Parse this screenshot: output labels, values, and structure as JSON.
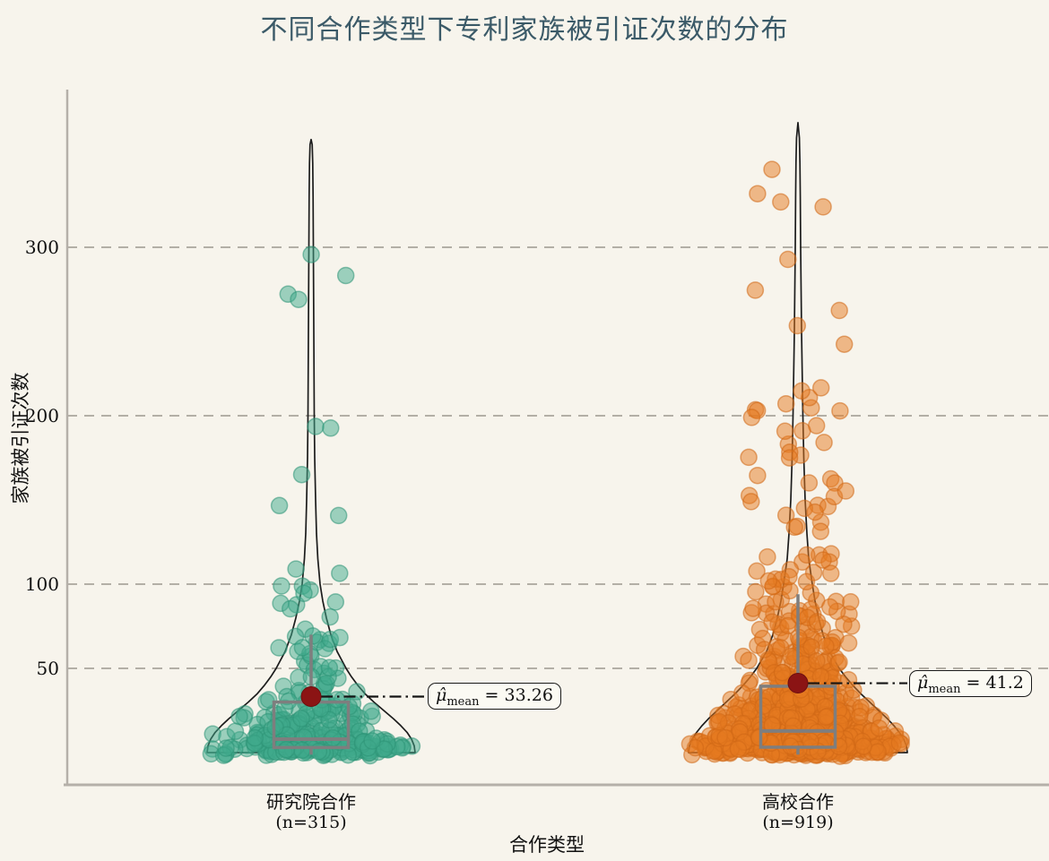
{
  "title": "不同合作类型下专利家族被引证次数的分布",
  "colors": {
    "background": "#f7f4ec",
    "title": "#3b5a68",
    "grid": "#b3afa6",
    "spine": "#b5b0a9",
    "violin_outline": "#1c1c1c",
    "box": "#7e7e7e",
    "mean_dot": "#8b1414",
    "connector": "#141414"
  },
  "chart_data": {
    "type": "violin-box-scatter",
    "title": "不同合作类型下专利家族被引证次数的分布",
    "xlabel": "合作类型",
    "ylabel": "家族被引证次数",
    "yticks": [
      50,
      100,
      200,
      300
    ],
    "ylim": [
      0,
      394
    ],
    "grid": "horizontal-dashed",
    "legend": "none",
    "series": [
      {
        "label": "研究院合作",
        "n": 315,
        "n_label": "(n=315)",
        "point_color": "#3fa98c",
        "point_stroke": "#2e9377",
        "mean": 33.26,
        "box": {
          "q1": 3,
          "median": 8,
          "q3": 30,
          "whisker_low": -1.2,
          "whisker_high": 70
        },
        "max": 364,
        "distribution": {
          "type": "lognormal",
          "mu": 2.197,
          "sigma": 1.617,
          "seed": 7
        },
        "jitter_min_amp": 45,
        "annotation": {
          "mu": "μ̂",
          "sub": "mean",
          "rest": " = 33.26"
        },
        "violin_profile": [
          [
            0,
            116
          ],
          [
            4,
            115
          ],
          [
            8,
            112
          ],
          [
            12,
            107
          ],
          [
            16,
            100
          ],
          [
            20,
            92
          ],
          [
            25,
            81
          ],
          [
            30,
            70
          ],
          [
            35,
            60
          ],
          [
            40,
            52
          ],
          [
            45,
            45
          ],
          [
            50,
            39
          ],
          [
            60,
            29
          ],
          [
            70,
            22
          ],
          [
            80,
            17
          ],
          [
            90,
            13
          ],
          [
            100,
            10
          ],
          [
            115,
            7.5
          ],
          [
            130,
            6
          ],
          [
            150,
            5
          ],
          [
            175,
            4
          ],
          [
            200,
            3.5
          ],
          [
            250,
            3
          ],
          [
            300,
            2.5
          ],
          [
            330,
            2.2
          ],
          [
            350,
            1.8
          ],
          [
            361,
            1.2
          ],
          [
            364,
            0
          ]
        ]
      },
      {
        "label": "高校合作",
        "n": 919,
        "n_label": "(n=919)",
        "point_color": "#e5791f",
        "point_stroke": "#cf6716",
        "mean": 41.2,
        "box": {
          "q1": 3.2,
          "median": 12.8,
          "q3": 39.4,
          "whisker_low": -1.2,
          "whisker_high": 94
        },
        "max": 374,
        "distribution": {
          "type": "lognormal",
          "mu": 2.549,
          "sigma": 1.529,
          "seed": 13
        },
        "jitter_min_amp": 66,
        "annotation": {
          "mu": "μ̂",
          "sub": "mean",
          "rest": " = 41.2"
        },
        "violin_profile": [
          [
            0,
            122
          ],
          [
            4,
            121
          ],
          [
            8,
            118
          ],
          [
            12,
            113
          ],
          [
            16,
            107
          ],
          [
            20,
            100
          ],
          [
            25,
            90
          ],
          [
            30,
            80
          ],
          [
            35,
            70
          ],
          [
            40,
            61
          ],
          [
            45,
            53
          ],
          [
            50,
            46
          ],
          [
            60,
            35
          ],
          [
            70,
            28
          ],
          [
            80,
            23
          ],
          [
            90,
            19
          ],
          [
            100,
            16
          ],
          [
            115,
            12
          ],
          [
            130,
            10
          ],
          [
            150,
            8
          ],
          [
            175,
            6.5
          ],
          [
            200,
            5.5
          ],
          [
            250,
            4
          ],
          [
            300,
            3
          ],
          [
            330,
            2.6
          ],
          [
            350,
            2.2
          ],
          [
            365,
            1.6
          ],
          [
            374,
            0
          ]
        ]
      }
    ]
  }
}
